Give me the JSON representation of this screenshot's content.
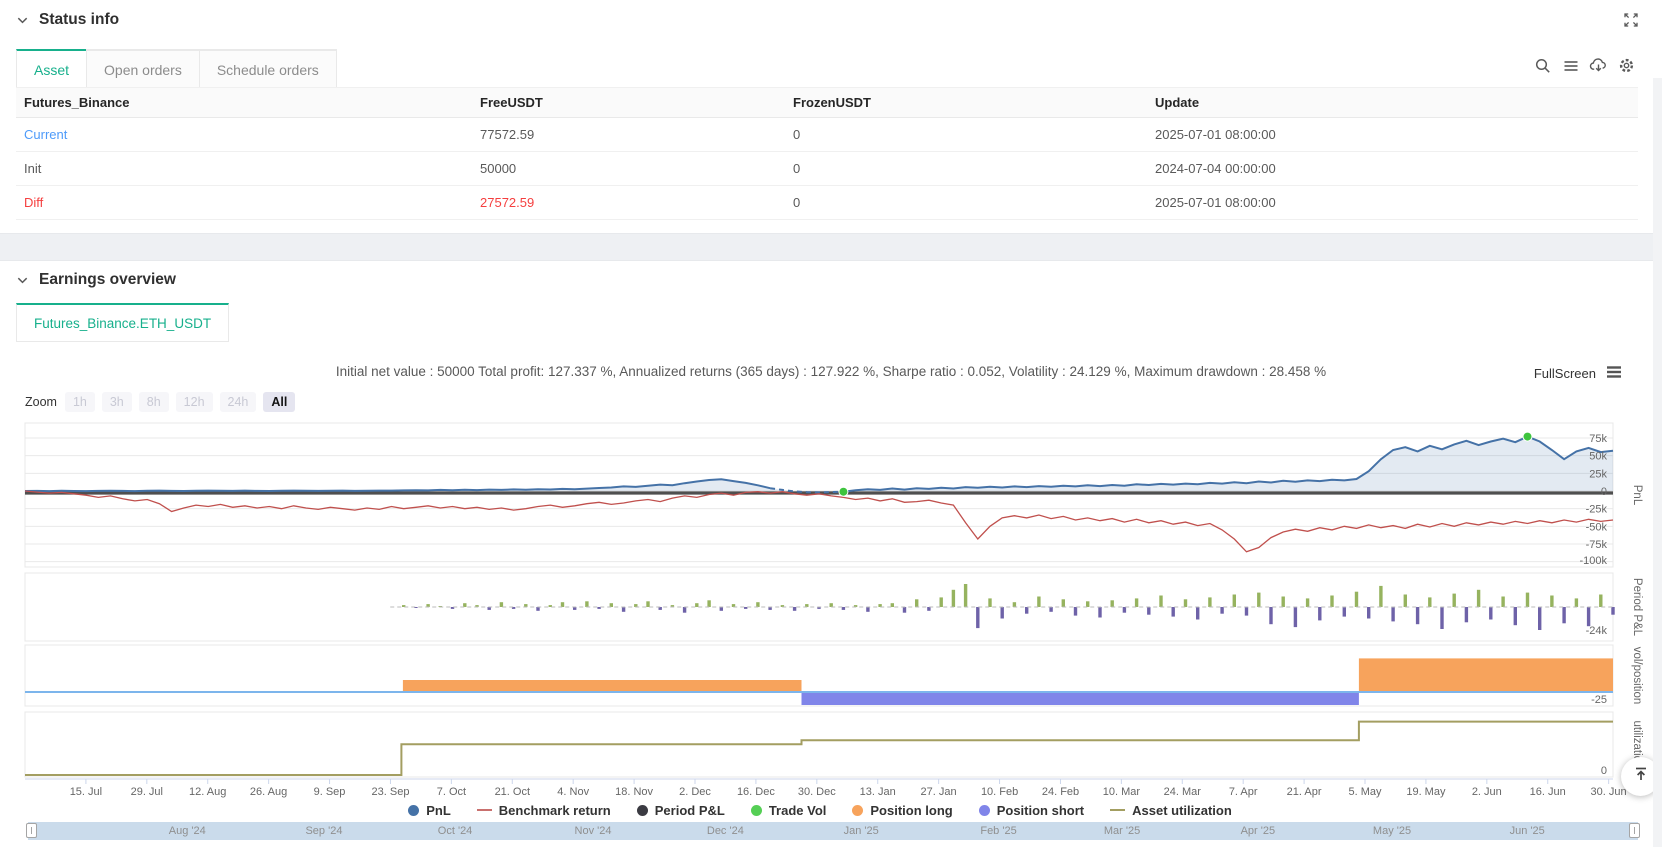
{
  "status_section": {
    "title": "Status info",
    "tabs": [
      {
        "label": "Asset",
        "active": true
      },
      {
        "label": "Open orders",
        "active": false
      },
      {
        "label": "Schedule orders",
        "active": false
      }
    ],
    "toolbar_icons": [
      "search-icon",
      "list-icon",
      "cloud-download-icon",
      "settings-icon"
    ],
    "expand_icon": "expand-icon",
    "table": {
      "columns": [
        "Futures_Binance",
        "FreeUSDT",
        "FrozenUSDT",
        "Update"
      ],
      "rows": [
        {
          "name": "Current",
          "free": "77572.59",
          "frozen": "0",
          "update": "2025-07-01 08:00:00"
        },
        {
          "name": "Init",
          "free": "50000",
          "frozen": "0",
          "update": "2024-07-04 00:00:00"
        },
        {
          "name": "Diff",
          "free": "27572.59",
          "frozen": "0",
          "update": "2025-07-01 08:00:00"
        }
      ]
    }
  },
  "earnings_section": {
    "title": "Earnings overview",
    "tab": "Futures_Binance.ETH_USDT",
    "summary": "Initial net value : 50000 Total profit: 127.337 %, Annualized returns (365 days) : 127.922 %, Sharpe ratio : 0.052, Volatility : 24.129 %, Maximum drawdown : 28.458 %",
    "fullscreen_label": "FullScreen",
    "context_menu_icon": "context-menu-icon",
    "zoom": {
      "label": "Zoom",
      "options": [
        "1h",
        "3h",
        "8h",
        "12h",
        "24h",
        "All"
      ],
      "active": "All"
    },
    "back_to_top_icon": "back-to-top-icon"
  },
  "colors": {
    "accent_green": "#17b08c",
    "link_blue": "#4e9bfa",
    "negative_red": "#f53f3f",
    "pnl_blue": "#4572a7",
    "benchmark_red": "#c0504d",
    "bar_positive": "#96b35f",
    "bar_negative": "#6e62a8",
    "trade_vol_green": "#3ec43e",
    "position_long": "#f7a35c",
    "position_short": "#8085e9",
    "utilization_olive": "#a39e61",
    "navigator_fill": "#cadbeb"
  },
  "chart_data": {
    "type": "multi-panel timeseries",
    "x_axis": {
      "tick_labels": [
        "15. Jul",
        "29. Jul",
        "12. Aug",
        "26. Aug",
        "9. Sep",
        "23. Sep",
        "7. Oct",
        "21. Oct",
        "4. Nov",
        "18. Nov",
        "2. Dec",
        "16. Dec",
        "30. Dec",
        "13. Jan",
        "27. Jan",
        "10. Feb",
        "24. Feb",
        "10. Mar",
        "24. Mar",
        "7. Apr",
        "21. Apr",
        "5. May",
        "19. May",
        "2. Jun",
        "16. Jun",
        "30. Jun"
      ],
      "navigator_labels": [
        "Aug '24",
        "Sep '24",
        "Oct '24",
        "Nov '24",
        "Dec '24",
        "Jan '25",
        "Feb '25",
        "Mar '25",
        "Apr '25",
        "May '25",
        "Jun '25"
      ]
    },
    "panels": [
      {
        "id": "pnl",
        "axis_title": "PnL",
        "y_ticks": [
          {
            "label": "75k",
            "v": 75
          },
          {
            "label": "50k",
            "v": 50
          },
          {
            "label": "25k",
            "v": 25
          },
          {
            "label": "0",
            "v": 0
          },
          {
            "label": "-25k",
            "v": -25
          },
          {
            "label": "-50k",
            "v": -50
          },
          {
            "label": "-75k",
            "v": -75
          },
          {
            "label": "-100k",
            "v": -100
          }
        ],
        "zero_plotline": true,
        "series": [
          {
            "name": "PnL",
            "type": "area-line",
            "color": "#4572a7",
            "fill": "rgba(69,114,167,0.15)",
            "unit": "k",
            "dashed_range": [
              61,
              67
            ],
            "values": [
              0,
              0.2,
              -0.1,
              0.3,
              0,
              -0.2,
              0.1,
              0.4,
              0.2,
              -0.1,
              0.3,
              0.5,
              0.2,
              0,
              0.4,
              0.6,
              0.3,
              0.1,
              0.5,
              0.2,
              0,
              0.3,
              0.6,
              0.4,
              0.1,
              0.3,
              0.5,
              0.2,
              0.4,
              0.6,
              0.5,
              0.8,
              1.2,
              0.9,
              1.5,
              1.1,
              1.8,
              1.3,
              2,
              1.6,
              2.2,
              1.8,
              2.5,
              2.1,
              3,
              2.6,
              3.4,
              4.2,
              5,
              6.5,
              5.8,
              7.5,
              9,
              8.2,
              11,
              13.5,
              15.5,
              16.5,
              14,
              11.5,
              8,
              4,
              1.5,
              -0.5,
              -1.5,
              -2,
              -1.5,
              -1,
              1,
              2.5,
              1.5,
              3.5,
              2,
              4,
              3,
              4.5,
              3.5,
              5.5,
              4.5,
              6,
              5,
              6.5,
              5.5,
              7,
              6,
              7.5,
              6.5,
              8,
              7,
              8.5,
              7.5,
              9.5,
              8.5,
              10,
              9,
              10.5,
              9.5,
              11.5,
              10.5,
              12.5,
              11,
              13.5,
              12,
              14.5,
              13,
              15,
              14,
              16,
              15,
              17,
              28,
              45,
              58,
              62,
              56,
              64,
              59,
              66,
              71,
              65,
              70,
              74,
              69,
              77,
              70,
              58,
              45,
              56,
              61,
              55,
              57
            ]
          },
          {
            "name": "Benchmark return",
            "type": "line",
            "color": "#c0504d",
            "unit": "k",
            "values": [
              0,
              -1.5,
              -3,
              -2,
              -4,
              -6,
              -9,
              -7,
              -11,
              -14,
              -12,
              -18,
              -29,
              -24,
              -20,
              -22,
              -19,
              -23,
              -21,
              -24,
              -22,
              -25,
              -21,
              -24,
              -26,
              -23,
              -25,
              -27,
              -24,
              -26,
              -22,
              -25,
              -23,
              -21,
              -24,
              -22,
              -25,
              -23,
              -26,
              -24,
              -27,
              -25,
              -22,
              -20,
              -23,
              -21,
              -18,
              -16,
              -19,
              -17,
              -14,
              -12,
              -15,
              -10,
              -7,
              -9,
              -5,
              -3,
              -6,
              -2,
              -1,
              -3,
              -1,
              -4,
              -6,
              -4,
              -7,
              -9,
              -12,
              -10,
              -14,
              -11,
              -16,
              -15,
              -13,
              -17,
              -20,
              -45,
              -68,
              -50,
              -38,
              -35,
              -38,
              -34,
              -39,
              -36,
              -41,
              -38,
              -42,
              -39,
              -44,
              -40,
              -45,
              -42,
              -47,
              -44,
              -49,
              -46,
              -55,
              -68,
              -86,
              -80,
              -66,
              -58,
              -54,
              -57,
              -52,
              -55,
              -50,
              -53,
              -48,
              -52,
              -49,
              -53,
              -47,
              -51,
              -46,
              -50,
              -45,
              -48,
              -44,
              -47,
              -43,
              -46,
              -42,
              -45,
              -41,
              -44,
              -40,
              -43,
              -41
            ]
          },
          {
            "name": "Trade Vol",
            "type": "marker",
            "color": "#3ec43e",
            "points": [
              {
                "i": 67
              },
              {
                "i": 123
              }
            ]
          }
        ]
      },
      {
        "id": "period-pnl",
        "axis_title": "Period P&L",
        "y_ticks": [
          {
            "label": "-24k",
            "v": -24
          }
        ],
        "zero_dashed": true,
        "series": [
          {
            "name": "Period P&L",
            "type": "bars",
            "pos_color": "#96b35f",
            "neg_color": "#6e62a8",
            "unit": "k",
            "values": [
              0,
              0,
              0,
              0,
              0,
              0,
              0,
              0,
              0,
              0,
              0,
              0,
              0,
              0,
              0,
              0,
              0,
              0,
              0,
              0,
              0,
              0,
              0,
              0,
              0,
              0,
              0,
              0,
              0,
              0,
              0,
              2,
              -1,
              3,
              1,
              -2,
              4,
              2,
              -3,
              5,
              -2,
              3,
              -4,
              2,
              5,
              -3,
              6,
              -2,
              4,
              -5,
              3,
              6,
              -3,
              2,
              -6,
              4,
              7,
              -4,
              3,
              -2,
              5,
              -3,
              2,
              -4,
              3,
              -2,
              4,
              -3,
              2,
              -5,
              3,
              4,
              -6,
              8,
              -4,
              10,
              18,
              24,
              -22,
              9,
              -12,
              5,
              -7,
              11,
              -5,
              8,
              -9,
              6,
              -11,
              7,
              -6,
              9,
              -8,
              12,
              -10,
              8,
              -13,
              10,
              -7,
              13,
              -9,
              15,
              -18,
              11,
              -21,
              9,
              -14,
              12,
              -10,
              16,
              -12,
              22,
              -15,
              13,
              -18,
              10,
              -23,
              14,
              -16,
              18,
              -13,
              11,
              -19,
              15,
              -24,
              12,
              -17,
              9,
              -20,
              13,
              -8
            ]
          }
        ]
      },
      {
        "id": "vol-position",
        "axis_title": "vol/position",
        "y_ticks": [
          {
            "label": "-25",
            "v": -25
          }
        ],
        "zero_line_color": "#7cb5ec",
        "series": [
          {
            "name": "Position long",
            "type": "hbar",
            "color": "#f7a35c",
            "segments": [
              {
                "f0": 0.238,
                "f1": 0.489,
                "v": 25
              },
              {
                "f0": 0.84,
                "f1": 1.0,
                "v": 70
              }
            ]
          },
          {
            "name": "Position short",
            "type": "hbar",
            "color": "#8085e9",
            "segments": [
              {
                "f0": 0.489,
                "f1": 0.84,
                "v": -25
              }
            ]
          }
        ]
      },
      {
        "id": "utilization",
        "axis_title": "utilization",
        "y_ticks": [
          {
            "label": "0",
            "v": 0
          }
        ],
        "series": [
          {
            "name": "Asset utilization",
            "type": "step",
            "color": "#a39e61",
            "unit": "%",
            "points": [
              [
                0,
                0
              ],
              [
                0.237,
                0
              ],
              [
                0.237,
                53
              ],
              [
                0.489,
                53
              ],
              [
                0.489,
                60
              ],
              [
                0.84,
                60
              ],
              [
                0.84,
                92
              ],
              [
                1,
                92
              ]
            ]
          }
        ]
      }
    ],
    "legend": [
      {
        "label": "PnL",
        "swatch": "dot",
        "color": "#4572a7"
      },
      {
        "label": "Benchmark return",
        "swatch": "line",
        "color": "#c9706e"
      },
      {
        "label": "Period P&L",
        "swatch": "dot",
        "color": "#3b3b42"
      },
      {
        "label": "Trade Vol",
        "swatch": "dot",
        "color": "#55cf55"
      },
      {
        "label": "Position long",
        "swatch": "dot",
        "color": "#f7a35c"
      },
      {
        "label": "Position short",
        "swatch": "dot",
        "color": "#8085e9"
      },
      {
        "label": "Asset utilization",
        "swatch": "line",
        "color": "#a39e61"
      }
    ]
  }
}
